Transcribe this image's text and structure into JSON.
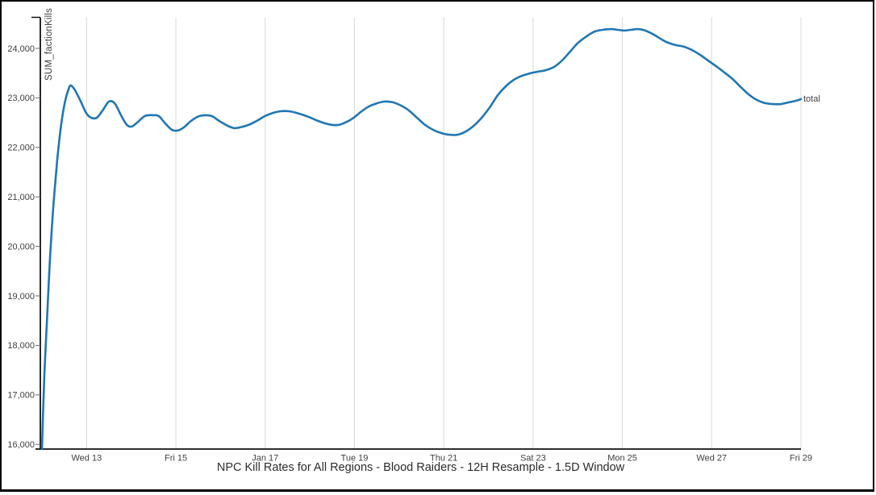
{
  "window": {
    "background": "#ffffff",
    "frame_color": "#000000"
  },
  "colors": {
    "line": "#1f77b4",
    "gridline": "#d8d8d8",
    "axis": "#111111",
    "tick": "#666666",
    "tick_label": "#3f3f3f",
    "title": "#2b2b2b"
  },
  "chart_data": {
    "type": "line",
    "title": "NPC Kill Rates for All Regions - Blood Raiders - 12H Resample - 1.5D Window",
    "ylabel": "SUM_factionKills",
    "xlabel": "",
    "legend_position": "end-of-line",
    "grid": "vertical-only",
    "x_unit": "days since Jan 12",
    "x_range": [
      -0.04,
      17.0
    ],
    "ylim": [
      15900,
      24620
    ],
    "x_ticks": [
      {
        "d": 1,
        "label": "Wed 13"
      },
      {
        "d": 3,
        "label": "Fri 15"
      },
      {
        "d": 5,
        "label": "Jan 17"
      },
      {
        "d": 7,
        "label": "Tue 19"
      },
      {
        "d": 9,
        "label": "Thu 21"
      },
      {
        "d": 11,
        "label": "Sat 23"
      },
      {
        "d": 13,
        "label": "Mon 25"
      },
      {
        "d": 15,
        "label": "Wed 27"
      },
      {
        "d": 17,
        "label": "Fri 29"
      }
    ],
    "y_ticks": [
      {
        "v": 16000,
        "label": "16,000"
      },
      {
        "v": 17000,
        "label": "17,000"
      },
      {
        "v": 18000,
        "label": "18,000"
      },
      {
        "v": 19000,
        "label": "19,000"
      },
      {
        "v": 20000,
        "label": "20,000"
      },
      {
        "v": 21000,
        "label": "21,000"
      },
      {
        "v": 22000,
        "label": "22,000"
      },
      {
        "v": 23000,
        "label": "23,000"
      },
      {
        "v": 24000,
        "label": "24,000"
      }
    ],
    "series": [
      {
        "name": "total",
        "color": "#1f77b4",
        "points": [
          [
            0.0,
            15905
          ],
          [
            0.05,
            17320
          ],
          [
            0.11,
            18460
          ],
          [
            0.18,
            19765
          ],
          [
            0.25,
            20740
          ],
          [
            0.34,
            21720
          ],
          [
            0.43,
            22455
          ],
          [
            0.52,
            22940
          ],
          [
            0.6,
            23185
          ],
          [
            0.65,
            23250
          ],
          [
            0.74,
            23155
          ],
          [
            0.87,
            22925
          ],
          [
            0.99,
            22695
          ],
          [
            1.1,
            22600
          ],
          [
            1.23,
            22600
          ],
          [
            1.37,
            22760
          ],
          [
            1.5,
            22925
          ],
          [
            1.63,
            22890
          ],
          [
            1.77,
            22650
          ],
          [
            1.9,
            22455
          ],
          [
            2.01,
            22420
          ],
          [
            2.13,
            22500
          ],
          [
            2.31,
            22635
          ],
          [
            2.49,
            22650
          ],
          [
            2.62,
            22630
          ],
          [
            2.76,
            22485
          ],
          [
            2.91,
            22355
          ],
          [
            3.04,
            22340
          ],
          [
            3.18,
            22405
          ],
          [
            3.34,
            22535
          ],
          [
            3.52,
            22630
          ],
          [
            3.67,
            22650
          ],
          [
            3.81,
            22630
          ],
          [
            3.97,
            22535
          ],
          [
            4.16,
            22435
          ],
          [
            4.3,
            22390
          ],
          [
            4.44,
            22405
          ],
          [
            4.63,
            22455
          ],
          [
            4.81,
            22535
          ],
          [
            4.99,
            22630
          ],
          [
            5.17,
            22695
          ],
          [
            5.35,
            22730
          ],
          [
            5.53,
            22730
          ],
          [
            5.71,
            22695
          ],
          [
            5.93,
            22630
          ],
          [
            6.14,
            22550
          ],
          [
            6.34,
            22485
          ],
          [
            6.5,
            22455
          ],
          [
            6.65,
            22455
          ],
          [
            6.79,
            22500
          ],
          [
            6.96,
            22585
          ],
          [
            7.14,
            22715
          ],
          [
            7.32,
            22825
          ],
          [
            7.5,
            22890
          ],
          [
            7.68,
            22925
          ],
          [
            7.86,
            22910
          ],
          [
            8.04,
            22845
          ],
          [
            8.22,
            22745
          ],
          [
            8.4,
            22600
          ],
          [
            8.58,
            22455
          ],
          [
            8.76,
            22355
          ],
          [
            8.94,
            22290
          ],
          [
            9.12,
            22255
          ],
          [
            9.31,
            22255
          ],
          [
            9.49,
            22320
          ],
          [
            9.67,
            22435
          ],
          [
            9.85,
            22600
          ],
          [
            10.03,
            22810
          ],
          [
            10.21,
            23055
          ],
          [
            10.39,
            23235
          ],
          [
            10.57,
            23365
          ],
          [
            10.75,
            23445
          ],
          [
            10.93,
            23495
          ],
          [
            11.11,
            23530
          ],
          [
            11.29,
            23560
          ],
          [
            11.47,
            23625
          ],
          [
            11.65,
            23755
          ],
          [
            11.83,
            23935
          ],
          [
            12.01,
            24115
          ],
          [
            12.2,
            24245
          ],
          [
            12.38,
            24340
          ],
          [
            12.56,
            24375
          ],
          [
            12.74,
            24390
          ],
          [
            12.9,
            24375
          ],
          [
            13.04,
            24360
          ],
          [
            13.19,
            24375
          ],
          [
            13.35,
            24390
          ],
          [
            13.51,
            24360
          ],
          [
            13.7,
            24280
          ],
          [
            13.88,
            24180
          ],
          [
            14.02,
            24115
          ],
          [
            14.2,
            24065
          ],
          [
            14.38,
            24035
          ],
          [
            14.56,
            23965
          ],
          [
            14.74,
            23870
          ],
          [
            14.92,
            23755
          ],
          [
            15.1,
            23640
          ],
          [
            15.29,
            23510
          ],
          [
            15.47,
            23380
          ],
          [
            15.65,
            23220
          ],
          [
            15.83,
            23070
          ],
          [
            16.01,
            22960
          ],
          [
            16.19,
            22895
          ],
          [
            16.37,
            22875
          ],
          [
            16.55,
            22875
          ],
          [
            16.73,
            22910
          ],
          [
            16.88,
            22940
          ],
          [
            17.0,
            22975
          ]
        ]
      }
    ]
  }
}
